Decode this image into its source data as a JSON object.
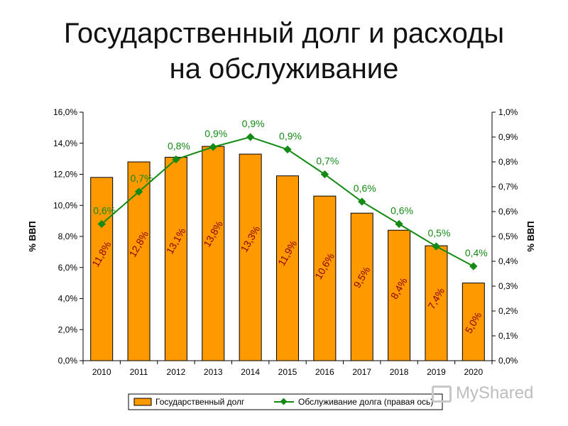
{
  "page": {
    "title_line1": "Государственный долг и расходы",
    "title_line2": "на обслуживание"
  },
  "watermark": {
    "text": "MyShared",
    "icon": "presentation-icon"
  },
  "colors": {
    "bar": "#ff9900",
    "bar_stroke": "#000000",
    "line": "#138a13",
    "bar_label": "#8b0000"
  },
  "chart_data": {
    "type": "bar",
    "categories": [
      "2010",
      "2011",
      "2012",
      "2013",
      "2014",
      "2015",
      "2016",
      "2017",
      "2018",
      "2019",
      "2020"
    ],
    "series": [
      {
        "name": "Государственный долг",
        "type": "bar",
        "axis": "left",
        "values": [
          11.8,
          12.8,
          13.1,
          13.8,
          13.3,
          11.9,
          10.6,
          9.5,
          8.4,
          7.4,
          5.0
        ],
        "labels": [
          "11,8%",
          "12,8%",
          "13,1%",
          "13,8%",
          "13,3%",
          "11,9%",
          "10,6%",
          "9,5%",
          "8,4%",
          "7,4%",
          "5,0%"
        ]
      },
      {
        "name": "Обслуживание долга (правая ось)",
        "type": "line",
        "axis": "right",
        "values": [
          0.55,
          0.68,
          0.81,
          0.86,
          0.9,
          0.85,
          0.75,
          0.64,
          0.55,
          0.46,
          0.38
        ],
        "labels": [
          "0,6%",
          "0,7%",
          "0,8%",
          "0,9%",
          "0,9%",
          "0,9%",
          "0,7%",
          "0,6%",
          "0,6%",
          "0,5%",
          "0,4%"
        ]
      }
    ],
    "y_left": {
      "label": "% ВВП",
      "ylim": [
        0,
        16
      ],
      "ticks": [
        0,
        2,
        4,
        6,
        8,
        10,
        12,
        14,
        16
      ],
      "tick_labels": [
        "0,0%",
        "2,0%",
        "4,0%",
        "6,0%",
        "8,0%",
        "10,0%",
        "12,0%",
        "14,0%",
        "16,0%"
      ]
    },
    "y_right": {
      "label": "% ВВП",
      "ylim": [
        0,
        1
      ],
      "ticks": [
        0,
        0.1,
        0.2,
        0.3,
        0.4,
        0.5,
        0.6,
        0.7,
        0.8,
        0.9,
        1.0
      ],
      "tick_labels": [
        "0,0%",
        "0,1%",
        "0,2%",
        "0,3%",
        "0,4%",
        "0,5%",
        "0,6%",
        "0,7%",
        "0,8%",
        "0,9%",
        "1,0%"
      ]
    },
    "grid": false,
    "legend_position": "bottom"
  }
}
